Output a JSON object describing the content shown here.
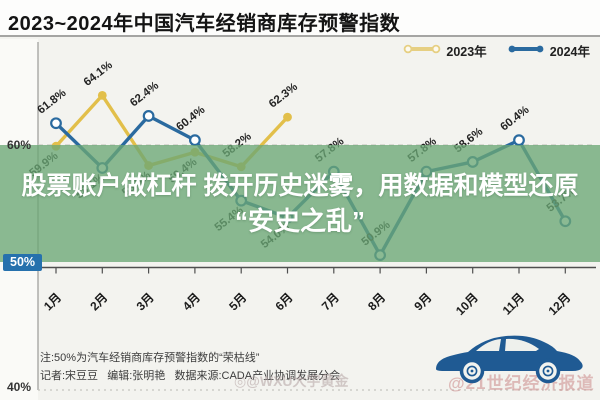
{
  "header": {
    "title": "2023~2024年中国汽车经销商库存预警指数"
  },
  "legend": {
    "items": [
      {
        "label": "2023年",
        "color": "#e6cf82",
        "marker": "open"
      },
      {
        "label": "2024年",
        "color": "#2a6a9f",
        "marker": "filled"
      }
    ]
  },
  "axis": {
    "y_labels": {
      "p60": "60%",
      "p50": "50%",
      "p40": "40%"
    }
  },
  "overlay": {
    "line1": "股票账户做杠杆 拨开历史迷雾，用数据和模型还原",
    "line2": "“安史之乱”",
    "bg_rgba": "rgba(106,166,117,0.78)",
    "text_color": "#ffffff"
  },
  "notes": {
    "line1": "注:50%为汽车经销商库存预警指数的“荣枯线”",
    "line2": "记者:宋豆豆   编辑:张明艳   数据来源:CADA产业协调发展分会"
  },
  "watermarks": {
    "center": "◎@WXU大宇黄金",
    "right": "@21世纪经济报道"
  },
  "car_color": "#1f5a93",
  "chart_data": {
    "type": "line",
    "title": "2023~2024年中国汽车经销商库存预警指数",
    "categories": [
      "1月",
      "2月",
      "3月",
      "4月",
      "5月",
      "6月",
      "7月",
      "8月",
      "9月",
      "10月",
      "11月",
      "12月"
    ],
    "ylim": [
      40,
      67.5
    ],
    "y_gridlines": [
      {
        "value": 60,
        "style": "dashed"
      },
      {
        "value": 50,
        "style": "solid-axis-with-month-labels"
      },
      {
        "value": 40,
        "style": "dotted"
      }
    ],
    "legend_position": "top-right",
    "threshold_note": "50% = 荣枯线",
    "series": [
      {
        "name": "2023年",
        "color": "#e2bf4a",
        "marker": "filled",
        "values": [
          59.9,
          64.1,
          58.3,
          59.4,
          58.2,
          62.3
        ],
        "label_positions": [
          "below",
          "above",
          "below",
          "below",
          "above",
          "above"
        ]
      },
      {
        "name": "2024年",
        "color": "#2a6a9f",
        "marker": "open",
        "values": [
          61.8,
          58.1,
          62.4,
          60.4,
          55.4,
          54.0,
          57.8,
          50.9,
          57.8,
          58.6,
          60.4,
          53.7
        ],
        "label_positions": [
          "above",
          "below",
          "above",
          "above",
          "below",
          "below",
          "above",
          "above",
          "above",
          "above",
          "above",
          "above"
        ]
      }
    ]
  }
}
